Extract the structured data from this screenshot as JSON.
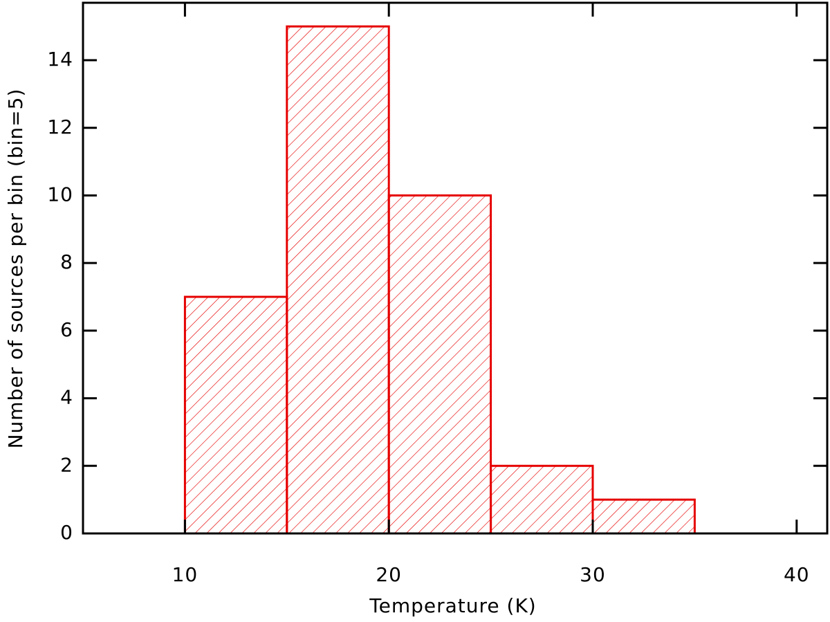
{
  "chart_data": {
    "type": "histogram",
    "x_label": "Temperature (K)",
    "y_label": "Number of sources per bin (bin=5)",
    "bins": [
      10,
      15,
      20,
      25,
      30,
      35
    ],
    "values": [
      7,
      15,
      10,
      2,
      1
    ],
    "color": "#e60000",
    "hatch": true,
    "xlim": [
      5,
      41.5
    ],
    "xticks": [
      10,
      20,
      30,
      40
    ],
    "ylim": [
      0,
      15.7
    ],
    "yticks": [
      0,
      2,
      4,
      6,
      8,
      10,
      12,
      14
    ]
  }
}
